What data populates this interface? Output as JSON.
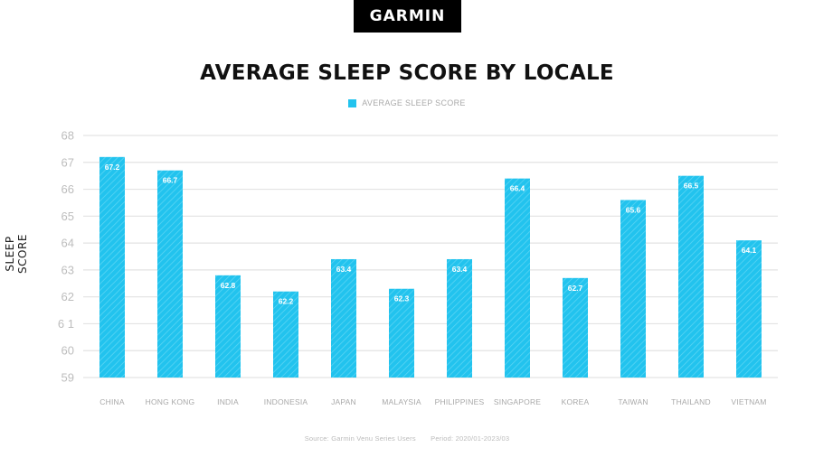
{
  "brand": {
    "logo_text": "GARMIN"
  },
  "chart_data": {
    "type": "bar",
    "title": "AVERAGE SLEEP SCORE BY LOCALE",
    "xlabel": "",
    "ylabel": "SLEEP SCORE",
    "ylim": [
      59,
      68
    ],
    "yticks": [
      "59",
      "60",
      "6 1",
      "62",
      "63",
      "64",
      "65",
      "66",
      "67",
      "68"
    ],
    "grid": true,
    "legend_position": "top-center",
    "categories": [
      "CHINA",
      "HONG KONG",
      "INDIA",
      "INDONESIA",
      "JAPAN",
      "MALAYSIA",
      "PHILIPPINES",
      "SINGAPORE",
      "KOREA",
      "TAIWAN",
      "THAILAND",
      "VIETNAM"
    ],
    "series": [
      {
        "name": "AVERAGE SLEEP SCORE",
        "color": "#22c3ee",
        "values": [
          67.2,
          66.7,
          62.8,
          62.2,
          63.4,
          62.3,
          63.4,
          66.4,
          62.7,
          65.6,
          66.5,
          64.1
        ],
        "labels": [
          "67.2",
          "66.7",
          "62.8",
          "62.2",
          "63.4",
          "62.3",
          "63.4",
          "66.4",
          "62.7",
          "65.6",
          "66.5",
          "64.1"
        ]
      }
    ]
  },
  "footer": {
    "source": "Source: Garmin Venu Series Users",
    "period": "Period: 2020/01-2023/03"
  }
}
